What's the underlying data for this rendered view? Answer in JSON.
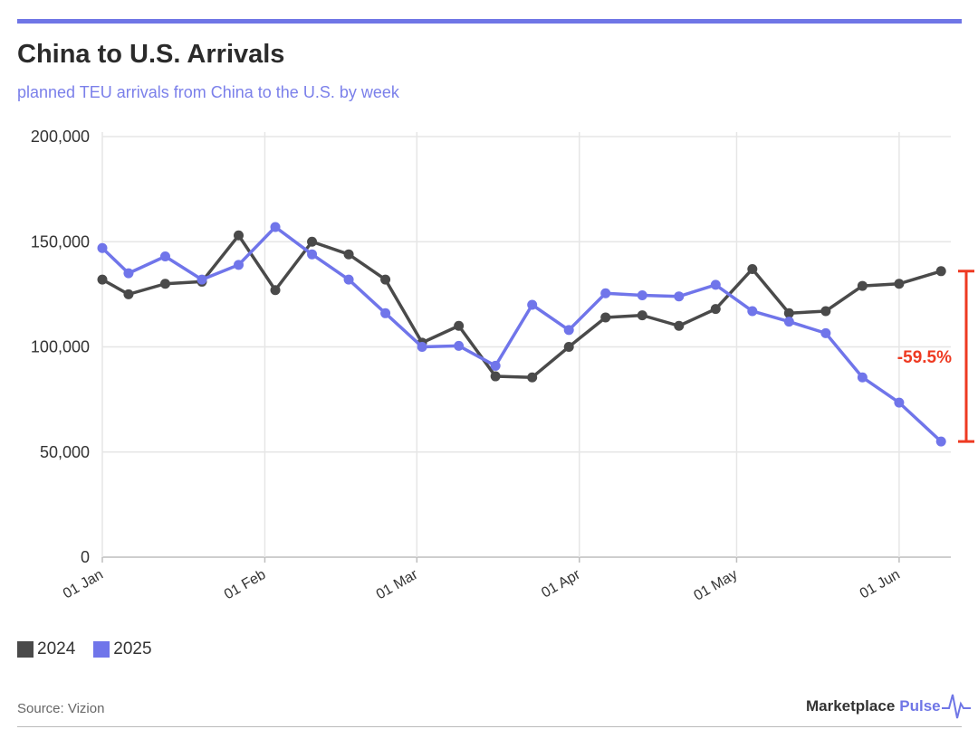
{
  "header": {
    "title": "China to U.S. Arrivals",
    "subtitle": "planned TEU arrivals from China to the U.S. by week"
  },
  "colors": {
    "accent": "#6f76e6",
    "series_2024": "#4a4a4a",
    "series_2025": "#7075ea",
    "annotation": "#ee3a22",
    "grid": "#e6e6e6"
  },
  "chart_data": {
    "type": "line",
    "title": "China to U.S. Arrivals",
    "subtitle": "planned TEU arrivals from China to the U.S. by week",
    "xlabel": "",
    "ylabel": "",
    "ylim": [
      0,
      200000
    ],
    "y_ticks": [
      0,
      50000,
      100000,
      150000,
      200000
    ],
    "y_tick_labels": [
      "0",
      "50,000",
      "100,000",
      "150,000",
      "200,000"
    ],
    "x_tick_labels": [
      "01 Jan",
      "01 Feb",
      "01 Mar",
      "01 Apr",
      "01 May",
      "01 Jun"
    ],
    "x_tick_days": [
      0,
      31,
      60,
      91,
      121,
      152
    ],
    "xlim_days": [
      0,
      161
    ],
    "grid": true,
    "series": [
      {
        "name": "2024",
        "x_days": [
          0,
          5,
          12,
          19,
          26,
          33,
          40,
          47,
          54,
          61,
          68,
          75,
          82,
          89,
          96,
          103,
          110,
          117,
          124,
          131,
          138,
          145,
          152,
          160
        ],
        "values": [
          132000,
          125000,
          130000,
          131000,
          153000,
          127000,
          150000,
          144000,
          132000,
          102000,
          110000,
          86000,
          85500,
          100000,
          114000,
          115000,
          110000,
          118000,
          137000,
          116000,
          117000,
          129000,
          130000,
          136000
        ]
      },
      {
        "name": "2025",
        "x_days": [
          0,
          5,
          12,
          19,
          26,
          33,
          40,
          47,
          54,
          61,
          68,
          75,
          82,
          89,
          96,
          103,
          110,
          117,
          124,
          131,
          138,
          145,
          152,
          160
        ],
        "values": [
          147000,
          135000,
          143000,
          132000,
          139000,
          157000,
          144000,
          132000,
          116000,
          100000,
          100500,
          91000,
          120000,
          108000,
          125500,
          124500,
          124000,
          129500,
          117000,
          112000,
          106500,
          85500,
          73500,
          55000
        ]
      }
    ],
    "annotation": {
      "label": "-59.5%",
      "from_value": 136000,
      "to_value": 55000
    }
  },
  "legend": {
    "items": [
      {
        "label": "2024"
      },
      {
        "label": "2025"
      }
    ]
  },
  "footer": {
    "source": "Source: Vizion",
    "brand_main": "Marketplace",
    "brand_accent": "Pulse"
  }
}
